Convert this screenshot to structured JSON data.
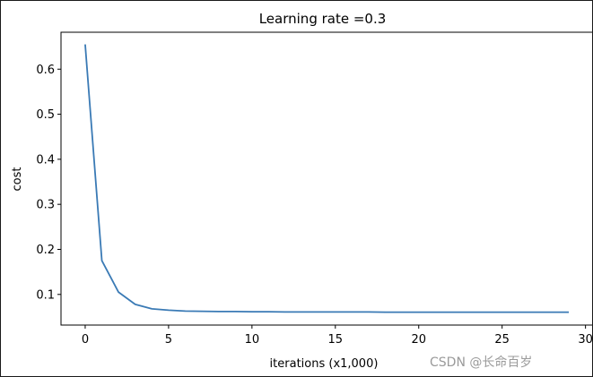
{
  "chart_data": {
    "type": "line",
    "title": "Learning rate =0.3",
    "xlabel": "iterations (x1,000)",
    "ylabel": "cost",
    "xlim": [
      -1.45,
      30.45
    ],
    "ylim": [
      0.032,
      0.682
    ],
    "xticks": [
      0,
      5,
      10,
      15,
      20,
      25,
      30
    ],
    "yticks": [
      0.1,
      0.2,
      0.3,
      0.4,
      0.5,
      0.6
    ],
    "ytick_labels": [
      "0.1",
      "0.2",
      "0.3",
      "0.4",
      "0.5",
      "0.6"
    ],
    "grid": false,
    "series": [
      {
        "color": "#3a7ab5",
        "x": [
          0,
          1,
          2,
          3,
          4,
          5,
          6,
          7,
          8,
          9,
          10,
          11,
          12,
          13,
          14,
          15,
          16,
          17,
          18,
          19,
          20,
          21,
          22,
          23,
          24,
          25,
          26,
          27,
          28,
          29
        ],
        "y": [
          0.655,
          0.175,
          0.105,
          0.078,
          0.068,
          0.065,
          0.063,
          0.0625,
          0.062,
          0.062,
          0.0615,
          0.0615,
          0.061,
          0.061,
          0.061,
          0.061,
          0.061,
          0.061,
          0.0605,
          0.0605,
          0.0605,
          0.0605,
          0.0605,
          0.0605,
          0.0605,
          0.0605,
          0.0605,
          0.0605,
          0.0605,
          0.0605
        ]
      }
    ]
  },
  "watermark": "CSDN @长命百岁 ️"
}
